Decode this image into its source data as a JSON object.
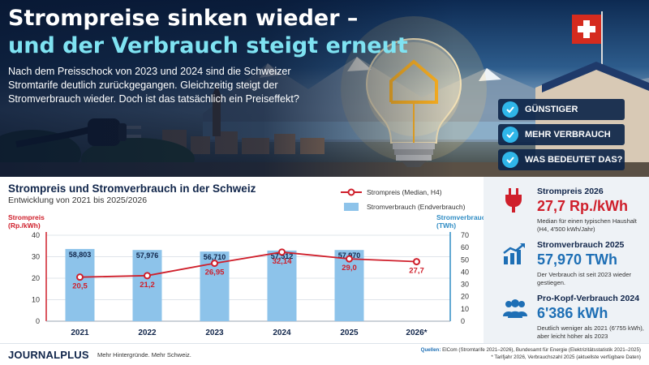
{
  "hero": {
    "headline_line1": "Strompreise sinken wieder –",
    "headline_line2": "und der Verbrauch steigt erneut",
    "lead": "Nach dem Preisschock von 2023 und 2024 sind die Schweizer Stromtarife deutlich zurückgegangen. Gleichzeitig steigt der Stromverbrauch wieder. Doch ist das tatsächlich ein Preiseffekt?",
    "checks": [
      "GÜNSTIGER",
      "MEHR VERBRAUCH",
      "WAS BEDEUTET DAS?"
    ]
  },
  "chart_data": {
    "type": "bar+line",
    "title": "Strompreis und Stromverbrauch in der Schweiz",
    "subtitle": "Entwicklung von 2021 bis 2025/2026",
    "categories": [
      "2021",
      "2022",
      "2023",
      "2024",
      "2025",
      "2026*"
    ],
    "left_axis": {
      "label_line1": "Strompreis",
      "label_line2": "(Rp./kWh)",
      "range": [
        0,
        40
      ],
      "ticks": [
        "0",
        "10",
        "20",
        "30",
        "40"
      ]
    },
    "right_axis": {
      "label_line1": "Stromverbrauch",
      "label_line2": "(TWh)",
      "range": [
        0,
        70
      ],
      "ticks": [
        "0",
        "10",
        "20",
        "30",
        "40",
        "50",
        "60",
        "70"
      ]
    },
    "bars": {
      "name": "Stromverbrauch (Endverbrauch)",
      "values": [
        58.803,
        57.976,
        56.71,
        57.512,
        57.97,
        null
      ],
      "labels": [
        "58,803",
        "57,976",
        "56,710",
        "57,512",
        "57,970",
        ""
      ],
      "color": "#8dc3ea"
    },
    "line": {
      "name": "Strompreis (Median, H4)",
      "values": [
        20.5,
        21.2,
        26.95,
        32.14,
        29.0,
        27.7
      ],
      "labels": [
        "20,5",
        "21,2",
        "26,95",
        "32,14",
        "29,0",
        "27,7"
      ],
      "color": "#cf1f2b"
    },
    "grid": true,
    "legend_position": "top-right"
  },
  "stats": [
    {
      "icon": "plug-icon",
      "title": "Strompreis 2026",
      "value": "27,7 Rp./kWh",
      "desc": "Median für einen typischen Haushalt (H4, 4'500 kWh/Jahr)"
    },
    {
      "icon": "chart-up-icon",
      "title": "Stromverbrauch 2025",
      "value": "57,970 TWh",
      "desc": "Der Verbrauch ist seit 2023 wieder gestiegen."
    },
    {
      "icon": "people-icon",
      "title": "Pro-Kopf-Verbrauch 2024",
      "value": "6'386 kWh",
      "desc": "Deutlich weniger als 2021 (6'755 kWh), aber leicht höher als 2023"
    }
  ],
  "footer": {
    "brand": "JOURNALPLUS",
    "tagline": "Mehr Hintergründe. Mehr Schweiz.",
    "sources_label": "Quellen:",
    "sources_text": "ElCom (Stromtarife 2021–2026), Bundesamt für Energie (Elektrizitätsstatistik 2021–2025)",
    "footnote": "* Tarifjahr 2026, Verbrauchszahl 2025 (aktuellste verfügbare Daten)"
  },
  "colors": {
    "navy": "#10254a",
    "accent_cyan": "#7fe3f2",
    "blue": "#1e6fb5",
    "red": "#cf1f2b",
    "bar": "#8dc3ea"
  }
}
